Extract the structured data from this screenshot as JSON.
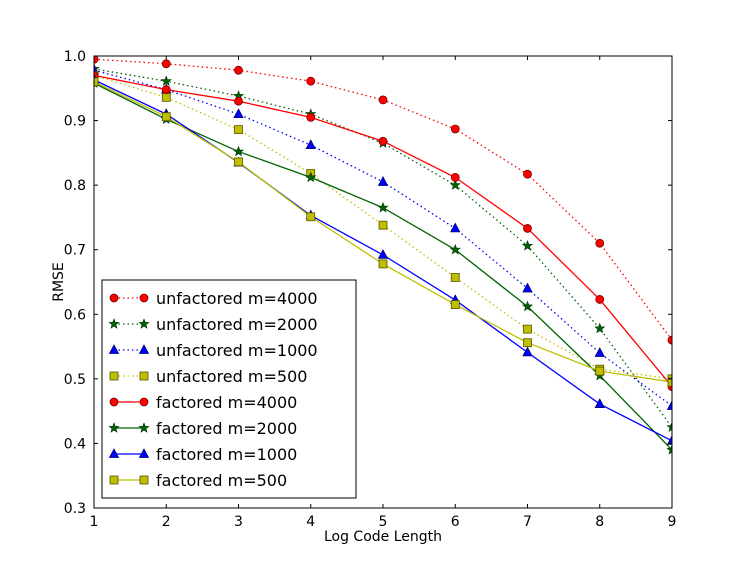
{
  "chart_data": {
    "type": "line",
    "title": "",
    "xlabel": "Log Code Length",
    "ylabel": "RMSE",
    "xlim": [
      1,
      9
    ],
    "ylim": [
      0.3,
      1.0
    ],
    "x": [
      1,
      2,
      3,
      4,
      5,
      6,
      7,
      8,
      9
    ],
    "xticks": [
      "1",
      "2",
      "3",
      "4",
      "5",
      "6",
      "7",
      "8",
      "9"
    ],
    "yticks": [
      "0.3",
      "0.4",
      "0.5",
      "0.6",
      "0.7",
      "0.8",
      "0.9",
      "1.0"
    ],
    "legend_position": "lower-left",
    "series": [
      {
        "name": "unfactored m=4000",
        "color": "#ff0000",
        "style": "dotted",
        "marker": "circle",
        "values": [
          0.995,
          0.988,
          0.978,
          0.961,
          0.932,
          0.887,
          0.817,
          0.71,
          0.56
        ]
      },
      {
        "name": "unfactored m=2000",
        "color": "#006400",
        "style": "dotted",
        "marker": "star",
        "values": [
          0.98,
          0.961,
          0.938,
          0.91,
          0.865,
          0.8,
          0.706,
          0.578,
          0.425
        ]
      },
      {
        "name": "unfactored m=1000",
        "color": "#0000ff",
        "style": "dotted",
        "marker": "triangle",
        "values": [
          0.978,
          0.948,
          0.91,
          0.862,
          0.805,
          0.733,
          0.64,
          0.54,
          0.458
        ]
      },
      {
        "name": "unfactored m=500",
        "color": "#bfbf00",
        "style": "dotted",
        "marker": "square",
        "values": [
          0.97,
          0.936,
          0.886,
          0.818,
          0.738,
          0.657,
          0.577,
          0.515,
          0.5
        ]
      },
      {
        "name": "factored m=4000",
        "color": "#ff0000",
        "style": "solid",
        "marker": "circle",
        "values": [
          0.97,
          0.948,
          0.93,
          0.905,
          0.868,
          0.812,
          0.733,
          0.623,
          0.488
        ]
      },
      {
        "name": "factored m=2000",
        "color": "#006400",
        "style": "solid",
        "marker": "star",
        "values": [
          0.958,
          0.902,
          0.852,
          0.812,
          0.765,
          0.7,
          0.612,
          0.505,
          0.39
        ]
      },
      {
        "name": "factored m=1000",
        "color": "#0000ff",
        "style": "solid",
        "marker": "triangle",
        "values": [
          0.963,
          0.91,
          0.835,
          0.753,
          0.692,
          0.622,
          0.541,
          0.461,
          0.404
        ]
      },
      {
        "name": "factored m=500",
        "color": "#bfbf00",
        "style": "solid",
        "marker": "square",
        "values": [
          0.96,
          0.906,
          0.836,
          0.751,
          0.678,
          0.615,
          0.556,
          0.512,
          0.495
        ]
      }
    ]
  }
}
